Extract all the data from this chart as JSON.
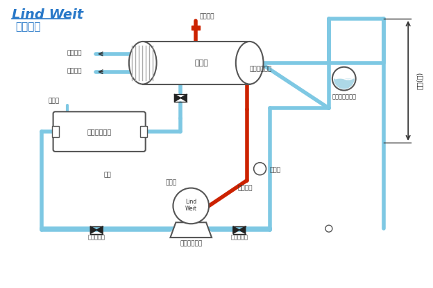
{
  "title_en": "Lind Weit",
  "title_cn": "林德伟特",
  "bg_color": "#ffffff",
  "pipe_blue": "#7EC8E3",
  "pipe_red": "#CC2200",
  "pipe_gray": "#888888",
  "text_color": "#333333",
  "brand_color": "#2878C8",
  "labels": {
    "steam_in": "蔯汽进口",
    "hot_out": "热水出口",
    "cold_in": "冷水进口",
    "heat_exchanger": "换热器",
    "condensate_return": "冷凝水回收管道",
    "power_steam": "动力蔯汽入口",
    "vent": "放空口",
    "open_tank": "放空式回收罐",
    "pressure_head": "压头",
    "discharge": "排放口",
    "steam_inlet": "蔯汽入口",
    "drain_valve": "疏水阎",
    "pump_label_1": "Lind",
    "pump_label_2": "Weit",
    "inlet_valve": "入口止回阀",
    "condensate_pump": "冷凝水回收泵",
    "outlet_valve": "出口止回阀",
    "lift": "提升(米)"
  }
}
